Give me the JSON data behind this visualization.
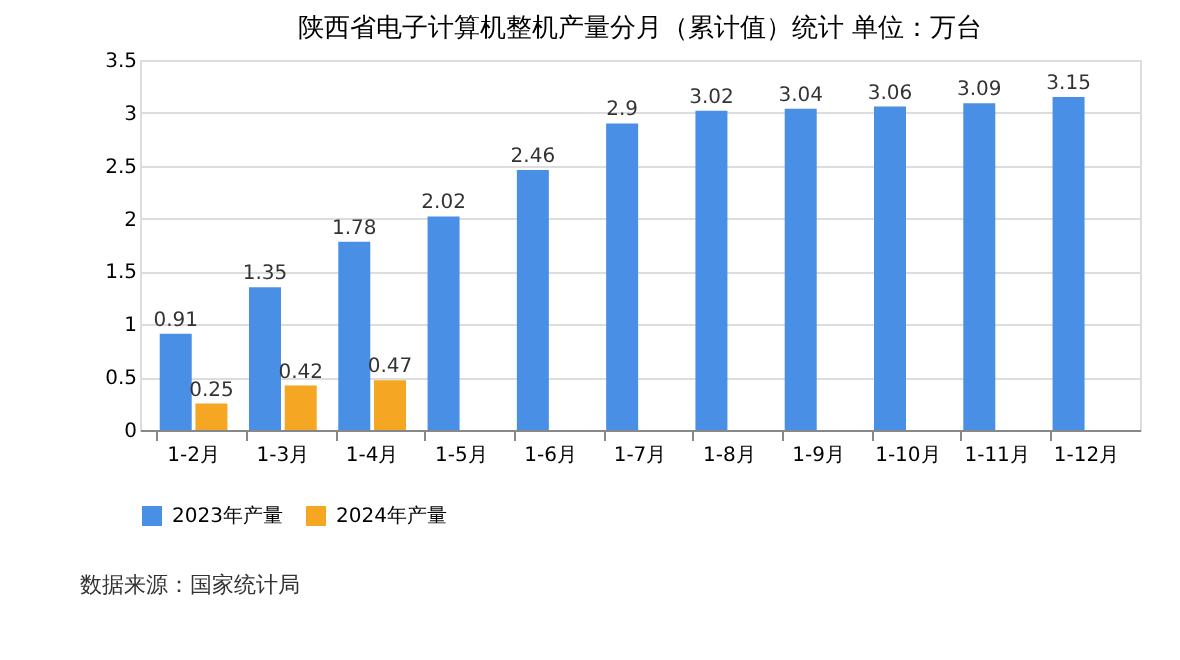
{
  "chart_data": {
    "type": "bar",
    "title": "陕西省电子计算机整机产量分月（累计值）统计 单位：万台",
    "categories": [
      "1-2月",
      "1-3月",
      "1-4月",
      "1-5月",
      "1-6月",
      "1-7月",
      "1-8月",
      "1-9月",
      "1-10月",
      "1-11月",
      "1-12月"
    ],
    "series": [
      {
        "name": "2023年产量",
        "color": "#4a8fe6",
        "values": [
          0.91,
          1.35,
          1.78,
          2.02,
          2.46,
          2.9,
          3.02,
          3.04,
          3.06,
          3.09,
          3.15
        ]
      },
      {
        "name": "2024年产量",
        "color": "#f5a623",
        "values": [
          0.25,
          0.42,
          0.47,
          null,
          null,
          null,
          null,
          null,
          null,
          null,
          null
        ]
      }
    ],
    "ylim": [
      0,
      3.5
    ],
    "yticks": [
      0,
      0.5,
      1,
      1.5,
      2,
      2.5,
      3,
      3.5
    ],
    "grid": "y",
    "legend": "bottom",
    "data_labels": true,
    "annotations": [
      "数据来源：国家统计局"
    ]
  }
}
